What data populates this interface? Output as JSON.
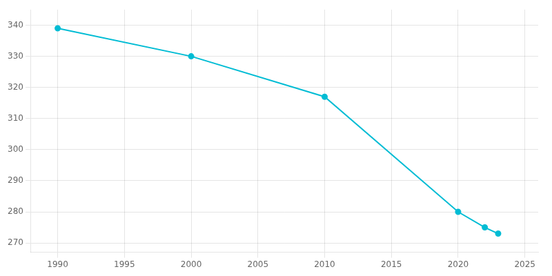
{
  "chart_data": {
    "type": "line",
    "x": [
      1990,
      2000,
      2010,
      2020,
      2022,
      2023
    ],
    "values": [
      339,
      330,
      317,
      280,
      275,
      273
    ],
    "color": "#00bcd4",
    "marker": "circle",
    "xlim": [
      1988,
      2026
    ],
    "ylim": [
      267,
      345
    ],
    "xticks": [
      1990,
      1995,
      2000,
      2005,
      2010,
      2015,
      2020,
      2025
    ],
    "yticks": [
      270,
      280,
      290,
      300,
      310,
      320,
      330,
      340
    ],
    "grid": true
  }
}
